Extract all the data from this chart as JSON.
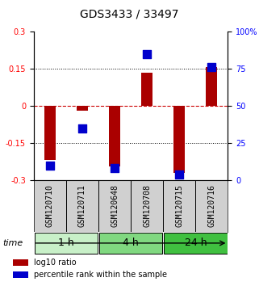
{
  "title": "GDS3433 / 33497",
  "samples": [
    "GSM120710",
    "GSM120711",
    "GSM120648",
    "GSM120708",
    "GSM120715",
    "GSM120716"
  ],
  "log10_ratio": [
    -0.22,
    -0.02,
    -0.245,
    0.135,
    -0.27,
    0.155
  ],
  "percentile_rank": [
    10,
    35,
    8,
    85,
    4,
    76
  ],
  "groups": [
    {
      "label": "1 h",
      "samples": [
        "GSM120710",
        "GSM120711"
      ],
      "color": "#c8f0c8"
    },
    {
      "label": "4 h",
      "samples": [
        "GSM120648",
        "GSM120708"
      ],
      "color": "#80d880"
    },
    {
      "label": "24 h",
      "samples": [
        "GSM120715",
        "GSM120716"
      ],
      "color": "#40c040"
    }
  ],
  "ylim_left": [
    -0.3,
    0.3
  ],
  "ylim_right": [
    0,
    100
  ],
  "yticks_left": [
    -0.3,
    -0.15,
    0,
    0.15,
    0.3
  ],
  "yticks_right": [
    0,
    25,
    50,
    75,
    100
  ],
  "hlines": [
    -0.15,
    0,
    0.15
  ],
  "bar_color": "#aa0000",
  "dot_color": "#0000cc",
  "bar_width": 0.35,
  "dot_size": 50,
  "background_color": "#ffffff",
  "plot_bg_color": "#ffffff",
  "grid_color": "#000000",
  "zero_line_color": "#cc0000",
  "label_fontsize": 7,
  "title_fontsize": 10,
  "tick_fontsize": 7,
  "group_label_fontsize": 9,
  "legend_bar_label": "log10 ratio",
  "legend_dot_label": "percentile rank within the sample"
}
